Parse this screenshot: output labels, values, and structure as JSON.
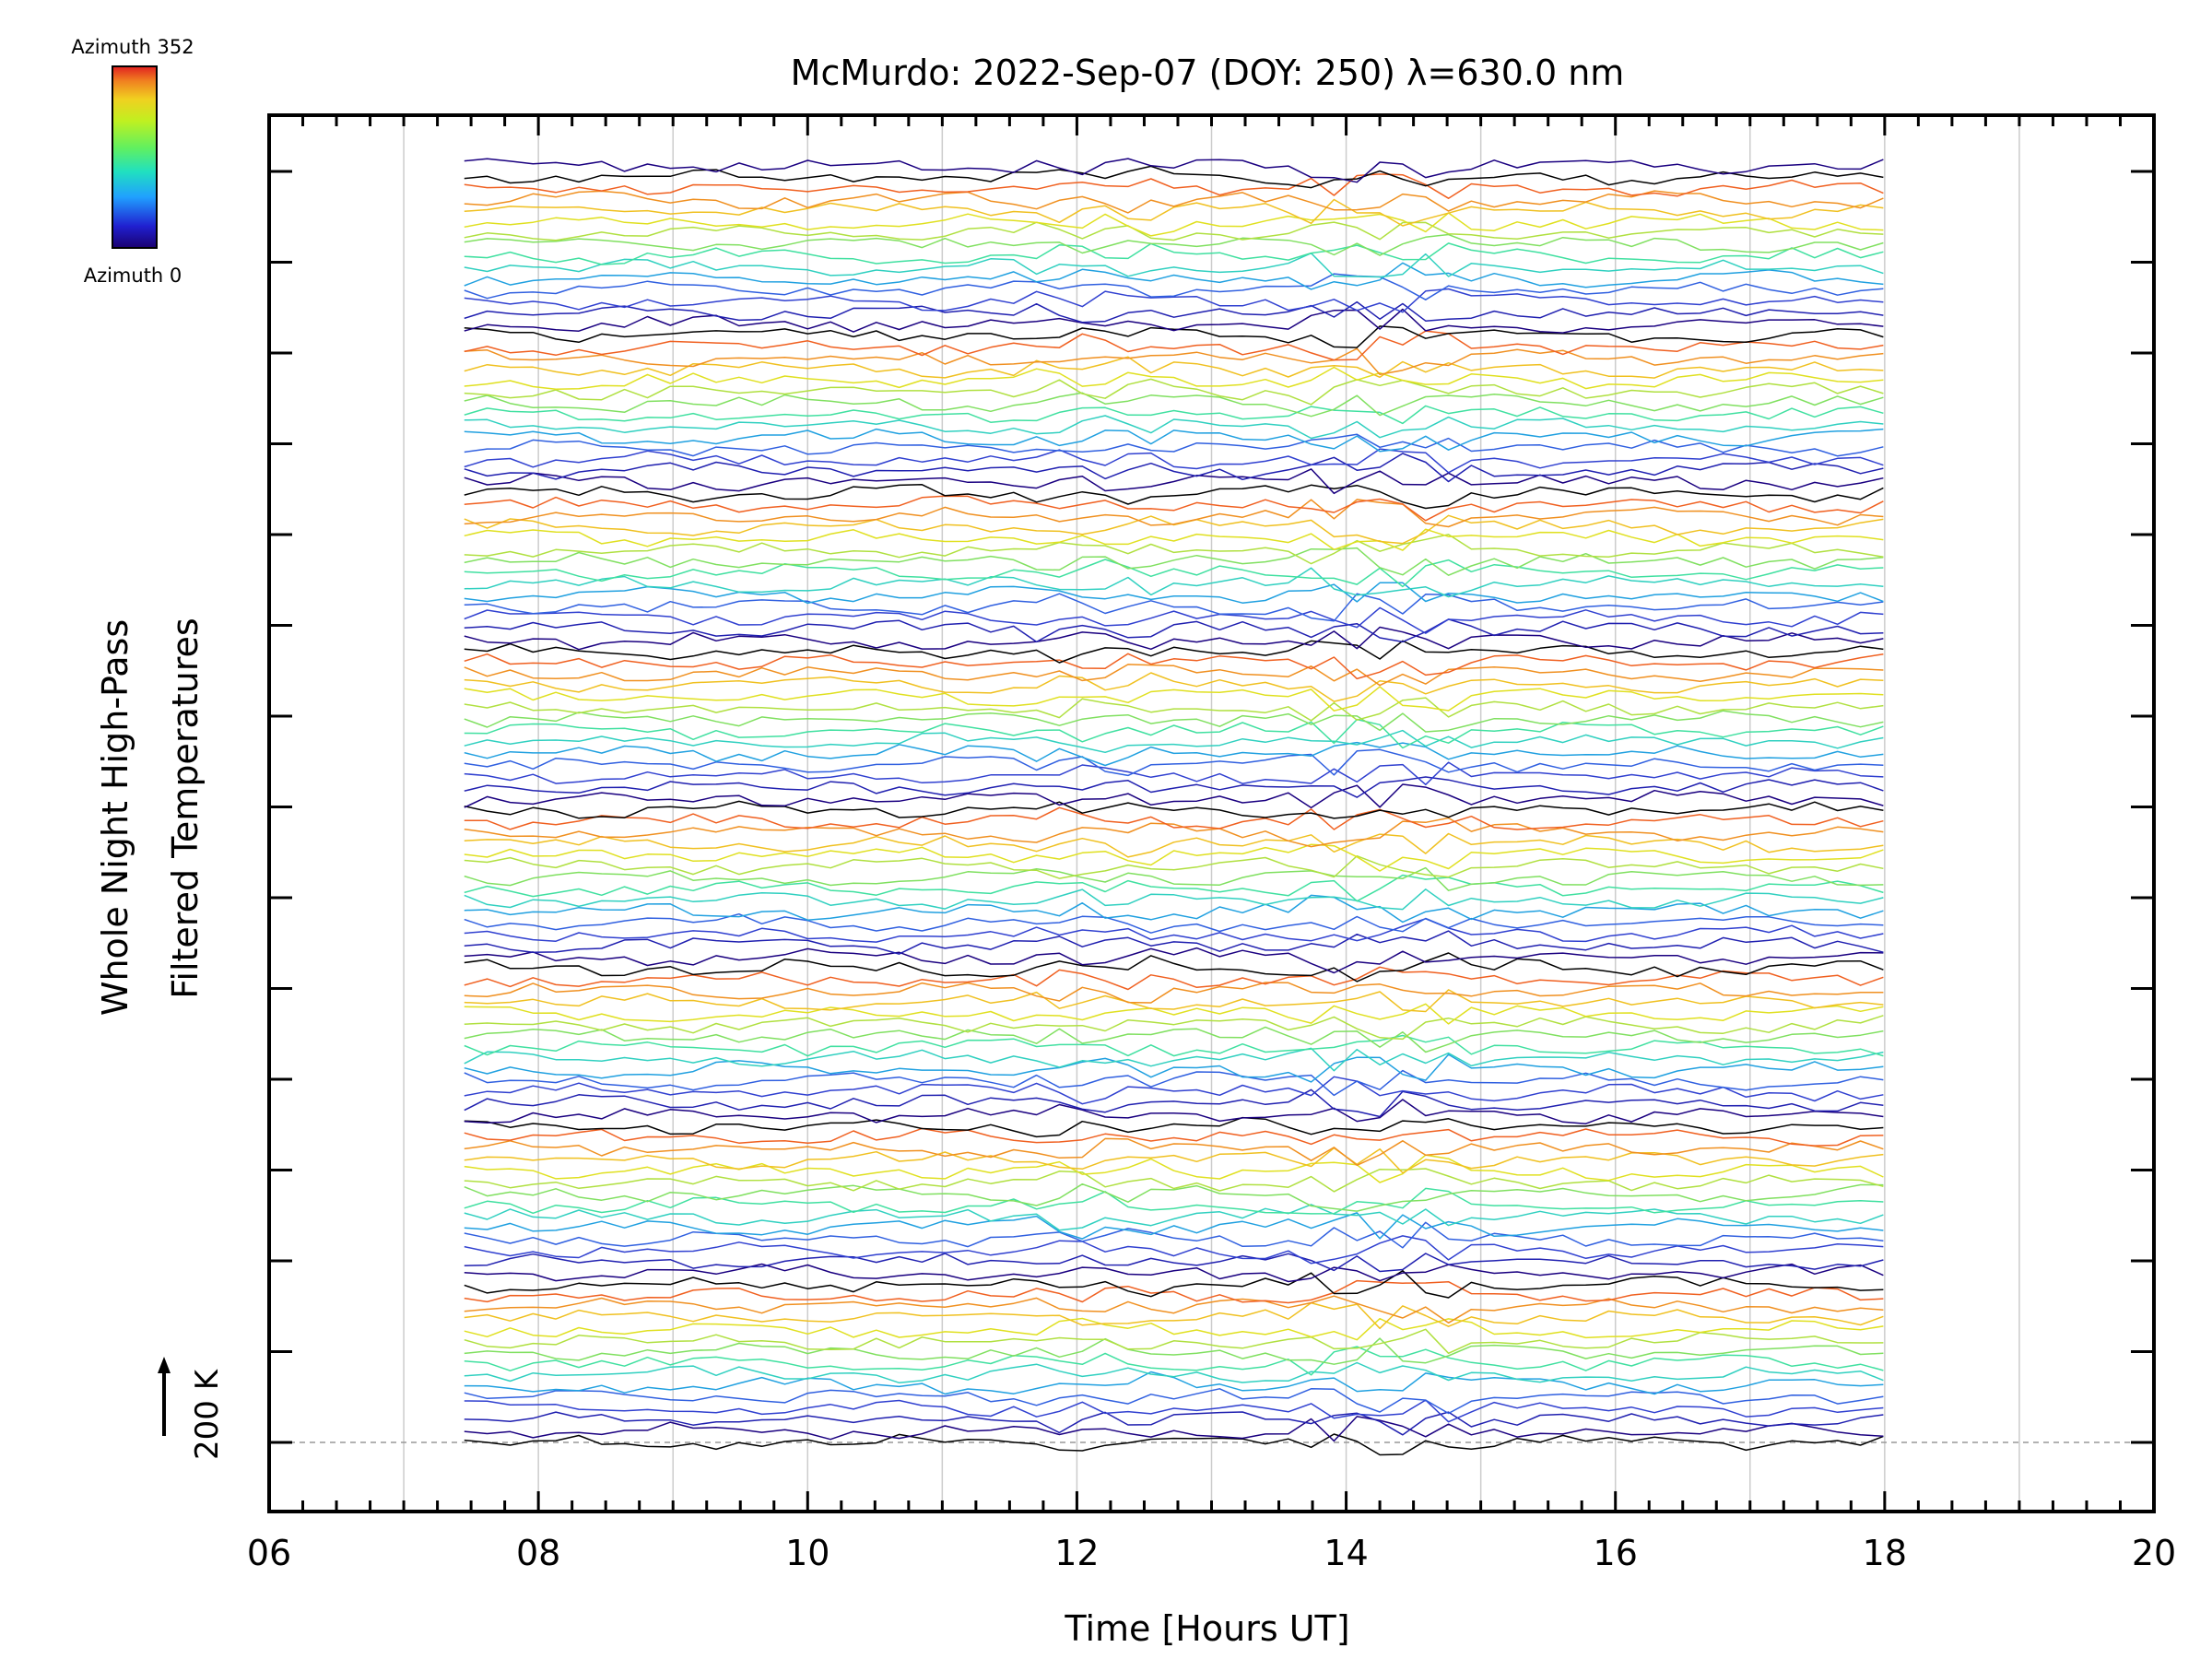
{
  "chart_data": {
    "type": "line",
    "title": "McMurdo: 2022-Sep-07 (DOY: 250) λ=630.0 nm",
    "xlabel": "Time [Hours UT]",
    "ylabel_lines": [
      "Whole Night High-Pass",
      "Filtered Temperatures"
    ],
    "x_ticks": [
      "06",
      "08",
      "10",
      "12",
      "14",
      "16",
      "18",
      "20"
    ],
    "xlim": [
      6,
      20
    ],
    "x_grid_hours": [
      7,
      8,
      9,
      10,
      11,
      12,
      13,
      14,
      15,
      16,
      17,
      18,
      19
    ],
    "data_time_range": [
      7.45,
      18.1
    ],
    "y_reference_label": "200 K",
    "y_reference_offset": 0,
    "colorbar": {
      "top_label": "Azimuth 352",
      "bottom_label": "Azimuth 0",
      "azimuth_range": [
        0,
        352
      ],
      "colormap": "rainbow"
    },
    "series_count": 114,
    "line_color_cycle": [
      "#000000",
      "#1a0080",
      "#2020b0",
      "#3040d0",
      "#3060e0",
      "#20a0e0",
      "#30d0c0",
      "#40e0a0",
      "#80e060",
      "#b0e040",
      "#e0e020",
      "#f0c020",
      "#f09020",
      "#f06020"
    ],
    "colors": {
      "background": "#ffffff",
      "axis": "#000000",
      "grid": "#cccccc",
      "reference_line": "#999999"
    }
  }
}
